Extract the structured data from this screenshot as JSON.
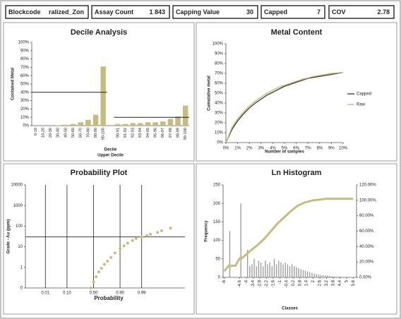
{
  "header": {
    "fields": [
      {
        "label": "Blockcode",
        "value": "ralized_Zon"
      },
      {
        "label": "Assay Count",
        "value": "1 843"
      },
      {
        "label": "Capping Value",
        "value": "30"
      },
      {
        "label": "Capped",
        "value": "7"
      },
      {
        "label": "COV",
        "value": "2.78"
      }
    ]
  },
  "chart_data": [
    {
      "type": "bar",
      "title": "Decile Analysis",
      "y_label": "Contained Metal",
      "x_label": "Decile",
      "x_label2": "Upper Decile",
      "categories": [
        "0-10",
        "10-20",
        "20-30",
        "30-40",
        "40-50",
        "50-60",
        "60-70",
        "70-80",
        "80-90",
        "90-100",
        "90-91",
        "91-92",
        "92-93",
        "93-94",
        "94-95",
        "95-96",
        "96-97",
        "97-98",
        "98-99",
        "99-100"
      ],
      "values": [
        0,
        0,
        0,
        0.5,
        1,
        2,
        4,
        7,
        13,
        71,
        2,
        2,
        3,
        3,
        4,
        4,
        5,
        8,
        11,
        24
      ],
      "color": "#c4bd7e",
      "hlines": [
        40,
        10
      ],
      "ylim": [
        0,
        100
      ],
      "yticks": [
        {
          "value": 0,
          "label": "0%"
        },
        {
          "value": 10,
          "label": "10%"
        },
        {
          "value": 20,
          "label": "20%"
        },
        {
          "value": 30,
          "label": "30%"
        },
        {
          "value": 40,
          "label": "40%"
        },
        {
          "value": 50,
          "label": "50%"
        },
        {
          "value": 60,
          "label": "60%"
        },
        {
          "value": 70,
          "label": "70%"
        },
        {
          "value": 80,
          "label": "80%"
        },
        {
          "value": 90,
          "label": "90%"
        },
        {
          "value": 100,
          "label": "100%"
        }
      ]
    },
    {
      "type": "line",
      "title": "Metal Content",
      "y_label": "Cumulative metal",
      "x_label": "Number of samples",
      "legend": "right",
      "x": [
        0,
        0.5,
        1,
        1.5,
        2,
        2.5,
        3,
        3.5,
        4,
        4.5,
        5,
        5.5,
        6,
        6.5,
        7,
        7.5,
        8,
        8.5,
        9,
        9.5,
        10
      ],
      "series": [
        {
          "name": "Capped",
          "color": "#404040",
          "values": [
            0,
            13,
            22,
            29,
            35,
            40,
            44,
            48,
            51,
            54,
            57,
            59,
            61,
            63,
            65,
            66,
            67,
            68,
            69,
            70,
            71
          ]
        },
        {
          "name": "Raw",
          "color": "#c4bd7e",
          "values": [
            0,
            15,
            24,
            31,
            37,
            42,
            46,
            50,
            53,
            56,
            58,
            60,
            62,
            64,
            65.5,
            67,
            68,
            69,
            70,
            70.5,
            71
          ]
        }
      ],
      "xlim": [
        0,
        10
      ],
      "ylim": [
        0,
        100
      ],
      "xticks": [
        {
          "value": 0,
          "label": "0%"
        },
        {
          "value": 1,
          "label": "1%"
        },
        {
          "value": 2,
          "label": "2%"
        },
        {
          "value": 3,
          "label": "3%"
        },
        {
          "value": 4,
          "label": "4%"
        },
        {
          "value": 5,
          "label": "5%"
        },
        {
          "value": 6,
          "label": "6%"
        },
        {
          "value": 7,
          "label": "7%"
        },
        {
          "value": 8,
          "label": "8%"
        },
        {
          "value": 9,
          "label": "9%"
        },
        {
          "value": 10,
          "label": "10%"
        }
      ],
      "yticks": [
        {
          "value": 0,
          "label": "0%"
        },
        {
          "value": 10,
          "label": "10%"
        },
        {
          "value": 20,
          "label": "20%"
        },
        {
          "value": 30,
          "label": "30%"
        },
        {
          "value": 40,
          "label": "40%"
        },
        {
          "value": 50,
          "label": "50%"
        },
        {
          "value": 60,
          "label": "60%"
        },
        {
          "value": 70,
          "label": "70%"
        },
        {
          "value": 80,
          "label": "80%"
        },
        {
          "value": 90,
          "label": "90%"
        },
        {
          "value": 100,
          "label": "100%"
        }
      ]
    },
    {
      "type": "scatter",
      "title": "Probability Plot",
      "y_label": "Grade - Au (ppm)",
      "x_label": "Probability",
      "x_scale": "normal-probability",
      "log_y": true,
      "color": "#c4bd7e",
      "hlines": [
        30
      ],
      "x": [
        0.45,
        0.5,
        0.55,
        0.6,
        0.65,
        0.7,
        0.75,
        0.8,
        0.85,
        0.9,
        0.93,
        0.95,
        0.97,
        0.98,
        0.99,
        0.995,
        0.997,
        0.999,
        0.9995,
        0.9999
      ],
      "values": [
        0.1,
        0.2,
        0.35,
        0.6,
        0.9,
        1.4,
        2,
        3,
        5,
        8,
        11,
        15,
        20,
        25,
        30,
        35,
        40,
        50,
        60,
        80
      ],
      "xlim": [
        0.0005,
        0.999995
      ],
      "ylim": [
        0.1,
        10000
      ],
      "xticks": [
        0.01,
        {
          "value": 0.1,
          "label": "0.10"
        },
        {
          "value": 0.5,
          "label": "0.50"
        },
        {
          "value": 0.9,
          "label": "0.90"
        },
        0.99
      ],
      "yticks": [
        {
          "value": 0.1,
          "label": "0"
        },
        1,
        10,
        100,
        1000,
        10000
      ]
    },
    {
      "type": "histogram",
      "title": "Ln Histogram",
      "y_label": "Frequency",
      "x_label": "Classes",
      "color": "#a0a0a0",
      "bins": [
        -6,
        -5.8,
        -5.6,
        -5.4,
        -5.2,
        -5,
        -4.8,
        -4.6,
        -4.4,
        -4.2,
        -4,
        -3.8,
        -3.6,
        -3.4,
        -3.2,
        -3,
        -2.8,
        -2.6,
        -2.4,
        -2.2,
        -2,
        -1.8,
        -1.6,
        -1.4,
        -1.2,
        -1,
        -0.8,
        -0.6,
        -0.4,
        -0.2,
        0,
        0.2,
        0.4,
        0.6,
        0.8,
        1,
        1.2,
        1.4,
        1.6,
        1.8,
        2,
        2.2,
        2.4,
        2.6,
        2.8,
        3,
        3.2,
        3.4,
        3.6,
        3.8,
        4,
        4.2,
        4.4,
        4.6,
        4.8,
        5,
        5.2,
        5.4,
        5.6
      ],
      "counts": [
        0,
        0,
        125,
        0,
        0,
        0,
        0,
        200,
        0,
        0,
        75,
        30,
        35,
        50,
        30,
        45,
        40,
        30,
        45,
        35,
        40,
        30,
        50,
        35,
        45,
        40,
        35,
        40,
        35,
        30,
        35,
        30,
        28,
        25,
        22,
        20,
        18,
        16,
        14,
        12,
        10,
        9,
        8,
        7,
        6,
        5,
        5,
        4,
        3,
        3,
        2,
        2,
        2,
        1,
        1,
        1,
        0,
        1
      ],
      "series": [
        {
          "color": "#c4bd7e",
          "axis": "y2",
          "x": [
            -6,
            -5.6,
            -5,
            -4.6,
            -4.4,
            -4,
            -3.6,
            -3,
            -2.4,
            -1.8,
            -1.2,
            -0.6,
            0,
            0.6,
            1.2,
            2,
            2.6,
            3.2,
            4,
            5.6
          ],
          "values": [
            8,
            15,
            15,
            25,
            25,
            30,
            35,
            42,
            50,
            60,
            70,
            78,
            86,
            93,
            97,
            100,
            101,
            102,
            102,
            102
          ]
        }
      ],
      "xlim": [
        -6.1,
        5.9
      ],
      "ylim": [
        0,
        250
      ],
      "y2lim": [
        0,
        120
      ],
      "xticks": [
        -6,
        -4.6,
        -4,
        -3.4,
        -2.8,
        -2.2,
        -1.6,
        -1,
        -0.4,
        0.2,
        0.8,
        1.4,
        2,
        2.6,
        3.2,
        3.8,
        4.4,
        5,
        5.6
      ],
      "yticks": [
        0,
        50,
        100,
        150,
        200,
        250
      ],
      "y2ticks": [
        {
          "value": 0,
          "label": "0.00%"
        },
        {
          "value": 20,
          "label": "20.00%"
        },
        {
          "value": 40,
          "label": "40.00%"
        },
        {
          "value": 60,
          "label": "60.00%"
        },
        {
          "value": 80,
          "label": "80.00%"
        },
        {
          "value": 100,
          "label": "100.00%"
        },
        {
          "value": 120,
          "label": "120.00%"
        }
      ]
    }
  ]
}
